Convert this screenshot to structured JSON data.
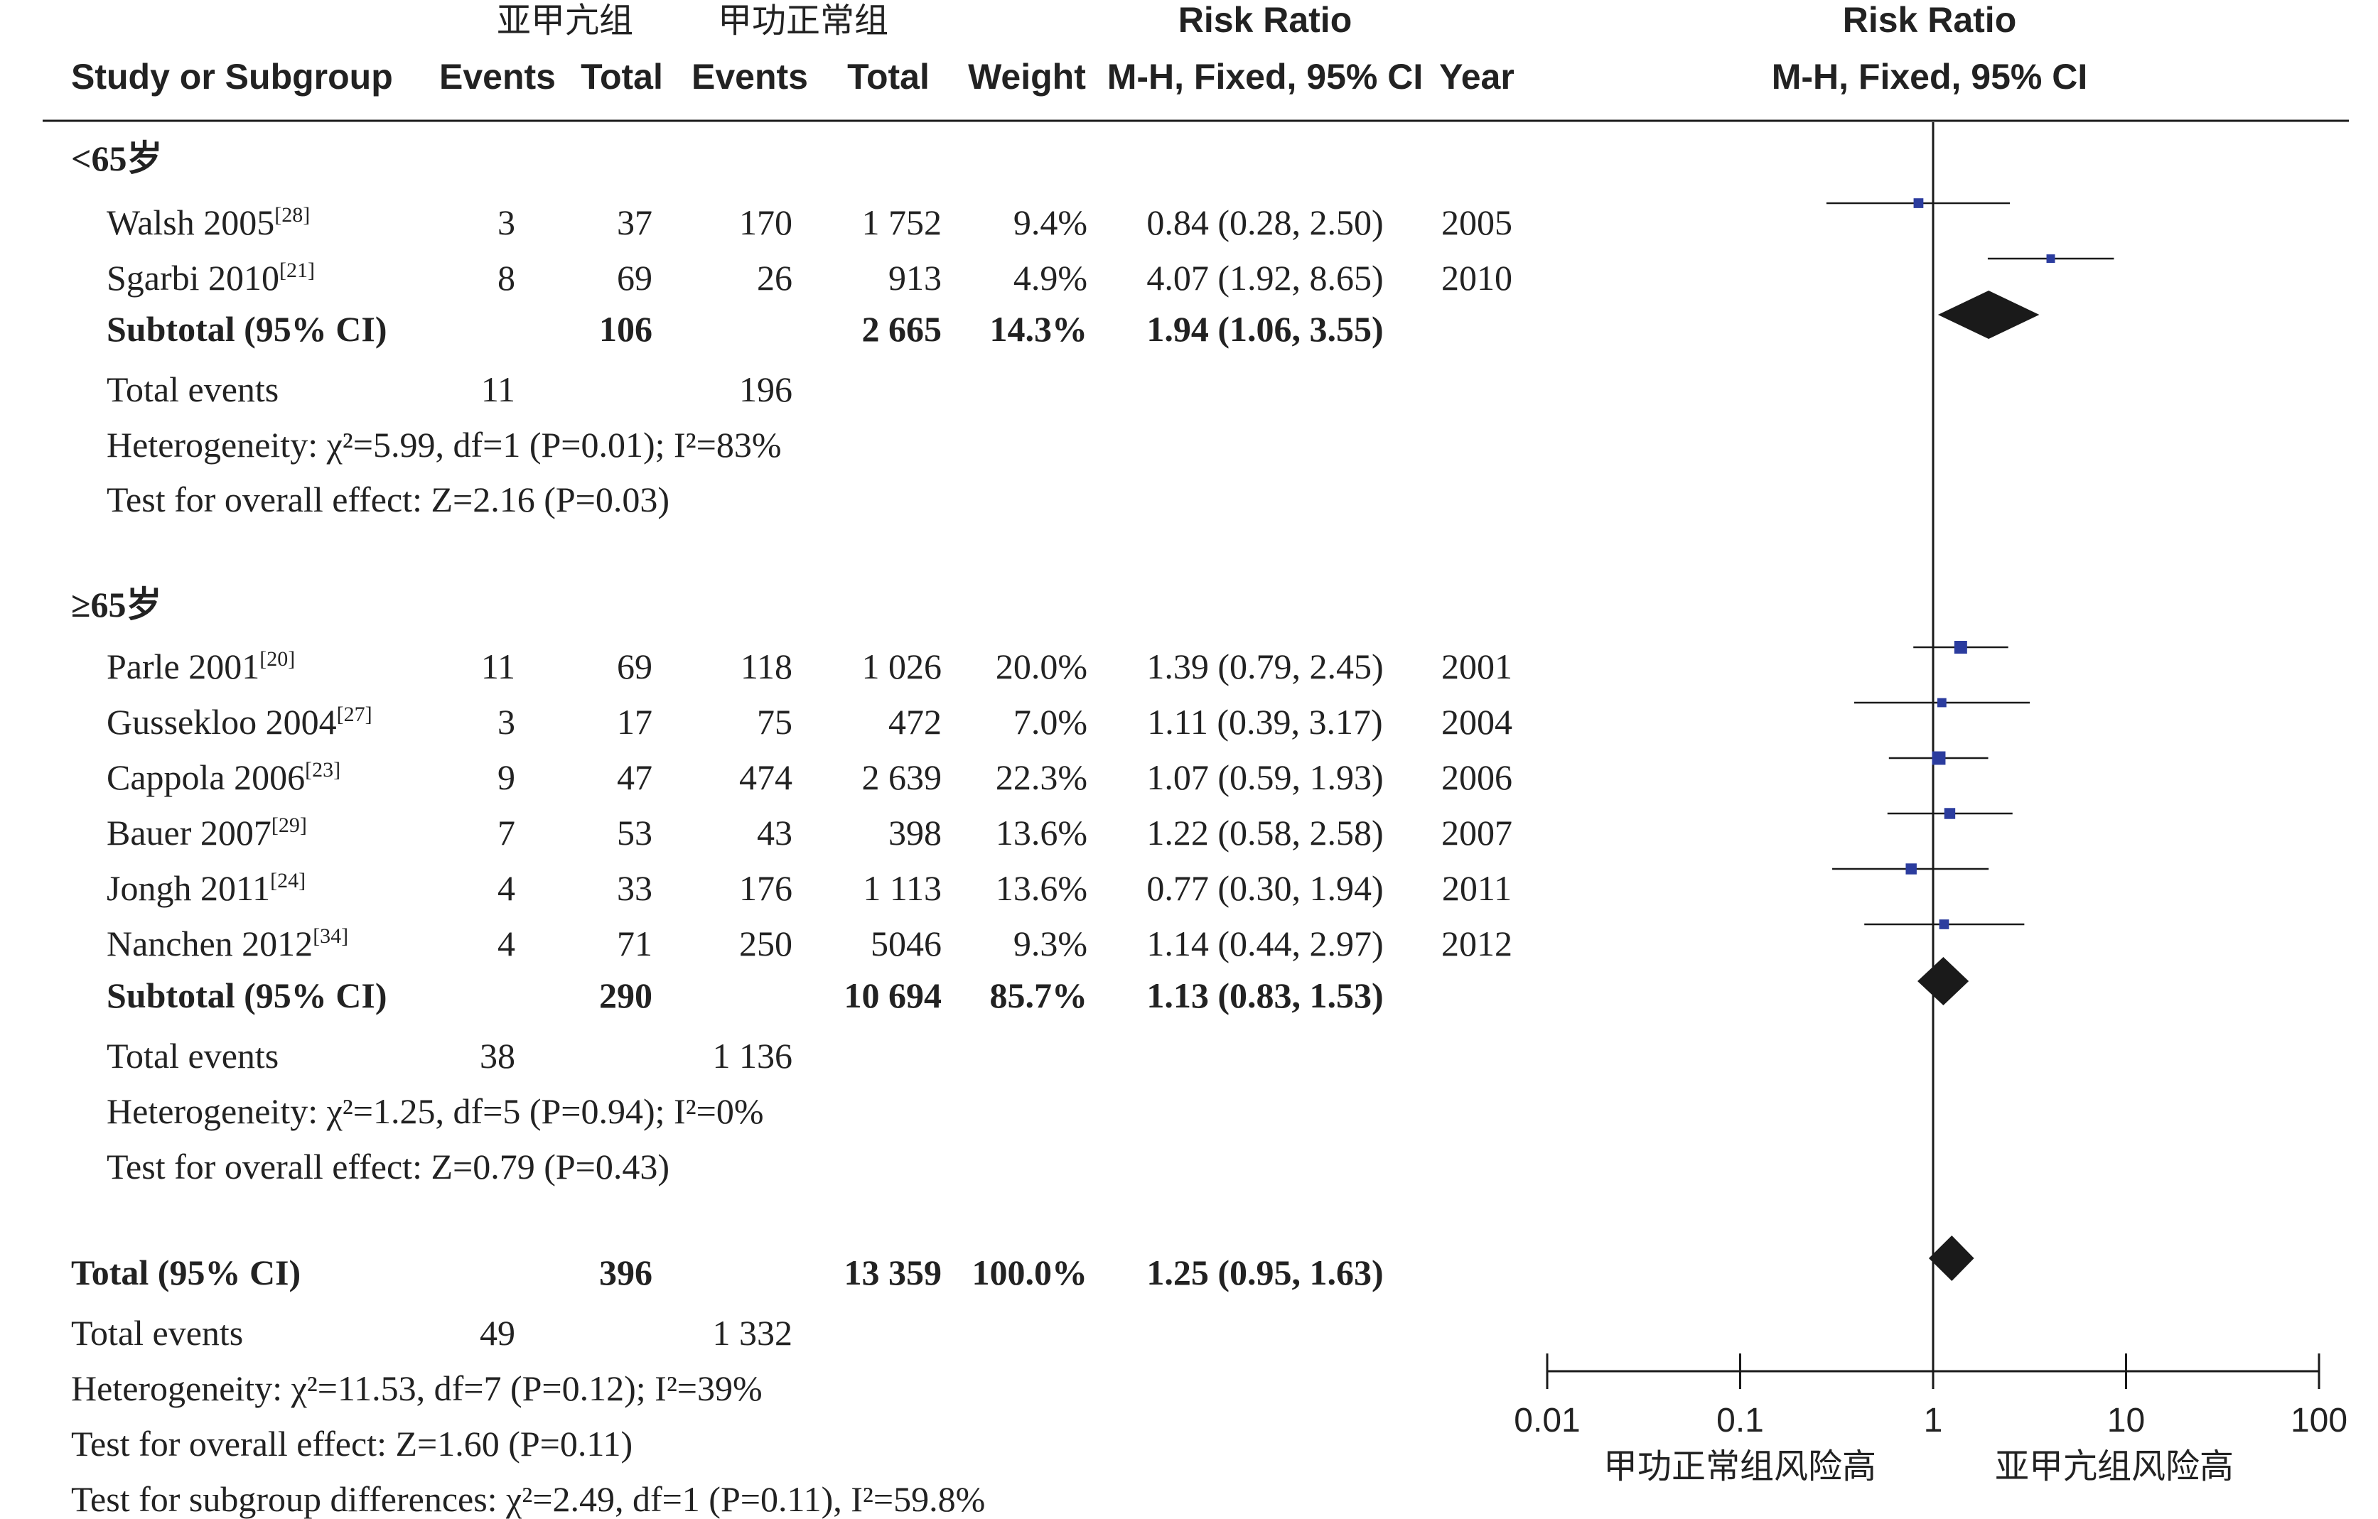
{
  "header": {
    "group_exp": "亚甲亢组",
    "group_ctrl": "甲功正常组",
    "risk_ratio": "Risk Ratio",
    "col_study": "Study or Subgroup",
    "col_events": "Events",
    "col_total": "Total",
    "col_weight": "Weight",
    "col_method": "M-H, Fixed, 95% CI",
    "col_year": "Year"
  },
  "subgroups": [
    {
      "label": "<65岁",
      "studies": [
        {
          "name": "Walsh 2005",
          "ref": "[28]",
          "e_events": "3",
          "e_total": "37",
          "c_events": "170",
          "c_total": "1 752",
          "weight": "9.4%",
          "ci": "0.84 (0.28, 2.50)",
          "year": "2005"
        },
        {
          "name": "Sgarbi 2010",
          "ref": "[21]",
          "e_events": "8",
          "e_total": "69",
          "c_events": "26",
          "c_total": "913",
          "weight": "4.9%",
          "ci": "4.07 (1.92, 8.65)",
          "year": "2010"
        }
      ],
      "subtotal": {
        "label": "Subtotal (95% CI)",
        "e_total": "106",
        "c_total": "2 665",
        "weight": "14.3%",
        "ci": "1.94 (1.06, 3.55)"
      },
      "total_events": {
        "label": "Total events",
        "e": "11",
        "c": "196"
      },
      "heterogeneity": "Heterogeneity: χ²=5.99, df=1 (P=0.01); I²=83%",
      "overall": "Test for overall effect: Z=2.16 (P=0.03)"
    },
    {
      "label": "≥65岁",
      "studies": [
        {
          "name": "Parle 2001",
          "ref": "[20]",
          "e_events": "11",
          "e_total": "69",
          "c_events": "118",
          "c_total": "1 026",
          "weight": "20.0%",
          "ci": "1.39 (0.79, 2.45)",
          "year": "2001"
        },
        {
          "name": "Gussekloo 2004",
          "ref": "[27]",
          "e_events": "3",
          "e_total": "17",
          "c_events": "75",
          "c_total": "472",
          "weight": "7.0%",
          "ci": "1.11 (0.39, 3.17)",
          "year": "2004"
        },
        {
          "name": "Cappola 2006",
          "ref": "[23]",
          "e_events": "9",
          "e_total": "47",
          "c_events": "474",
          "c_total": "2 639",
          "weight": "22.3%",
          "ci": "1.07 (0.59, 1.93)",
          "year": "2006"
        },
        {
          "name": "Bauer 2007",
          "ref": "[29]",
          "e_events": "7",
          "e_total": "53",
          "c_events": "43",
          "c_total": "398",
          "weight": "13.6%",
          "ci": "1.22 (0.58, 2.58)",
          "year": "2007"
        },
        {
          "name": "Jongh 2011",
          "ref": "[24]",
          "e_events": "4",
          "e_total": "33",
          "c_events": "176",
          "c_total": "1 113",
          "weight": "13.6%",
          "ci": "0.77 (0.30, 1.94)",
          "year": "2011"
        },
        {
          "name": "Nanchen 2012",
          "ref": "[34]",
          "e_events": "4",
          "e_total": "71",
          "c_events": "250",
          "c_total": "5046",
          "weight": "9.3%",
          "ci": "1.14 (0.44, 2.97)",
          "year": "2012"
        }
      ],
      "subtotal": {
        "label": "Subtotal (95% CI)",
        "e_total": "290",
        "c_total": "10 694",
        "weight": "85.7%",
        "ci": "1.13 (0.83, 1.53)"
      },
      "total_events": {
        "label": "Total events",
        "e": "38",
        "c": "1 136"
      },
      "heterogeneity": "Heterogeneity: χ²=1.25, df=5 (P=0.94); I²=0%",
      "overall": "Test for overall effect: Z=0.79 (P=0.43)"
    }
  ],
  "total": {
    "label": "Total (95% CI)",
    "e_total": "396",
    "c_total": "13 359",
    "weight": "100.0%",
    "ci": "1.25 (0.95, 1.63)",
    "events_label": "Total events",
    "e_events": "49",
    "c_events": "1 332",
    "heterogeneity": "Heterogeneity: χ²=11.53, df=7 (P=0.12); I²=39%",
    "overall": "Test for overall effect: Z=1.60 (P=0.11)",
    "subgroup_diff": "Test for subgroup differences: χ²=2.49, df=1 (P=0.11), I²=59.8%"
  },
  "axis": {
    "ticks": [
      "0.01",
      "0.1",
      "1",
      "10",
      "100"
    ],
    "left_label": "甲功正常组风险高",
    "right_label": "亚甲亢组风险高"
  },
  "colors": {
    "study_marker": "#2b3c9e",
    "diamond": "#1a1a1a",
    "line": "#1a1a1a"
  },
  "chart_data": {
    "type": "forest",
    "xscale": "log",
    "xlim": [
      0.01,
      100
    ],
    "reference_line": 1,
    "studies": [
      {
        "name": "Walsh 2005",
        "subgroup": "<65岁",
        "rr": 0.84,
        "lo": 0.28,
        "hi": 2.5,
        "weight": 9.4
      },
      {
        "name": "Sgarbi 2010",
        "subgroup": "<65岁",
        "rr": 4.07,
        "lo": 1.92,
        "hi": 8.65,
        "weight": 4.9
      },
      {
        "name": "Parle 2001",
        "subgroup": "≥65岁",
        "rr": 1.39,
        "lo": 0.79,
        "hi": 2.45,
        "weight": 20.0
      },
      {
        "name": "Gussekloo 2004",
        "subgroup": "≥65岁",
        "rr": 1.11,
        "lo": 0.39,
        "hi": 3.17,
        "weight": 7.0
      },
      {
        "name": "Cappola 2006",
        "subgroup": "≥65岁",
        "rr": 1.07,
        "lo": 0.59,
        "hi": 1.93,
        "weight": 22.3
      },
      {
        "name": "Bauer 2007",
        "subgroup": "≥65岁",
        "rr": 1.22,
        "lo": 0.58,
        "hi": 2.58,
        "weight": 13.6
      },
      {
        "name": "Jongh 2011",
        "subgroup": "≥65岁",
        "rr": 0.77,
        "lo": 0.3,
        "hi": 1.94,
        "weight": 13.6
      },
      {
        "name": "Nanchen 2012",
        "subgroup": "≥65岁",
        "rr": 1.14,
        "lo": 0.44,
        "hi": 2.97,
        "weight": 9.3
      }
    ],
    "subtotals": [
      {
        "name": "<65岁",
        "rr": 1.94,
        "lo": 1.06,
        "hi": 3.55
      },
      {
        "name": "≥65岁",
        "rr": 1.13,
        "lo": 0.83,
        "hi": 1.53
      }
    ],
    "overall": {
      "rr": 1.25,
      "lo": 0.95,
      "hi": 1.63
    }
  }
}
